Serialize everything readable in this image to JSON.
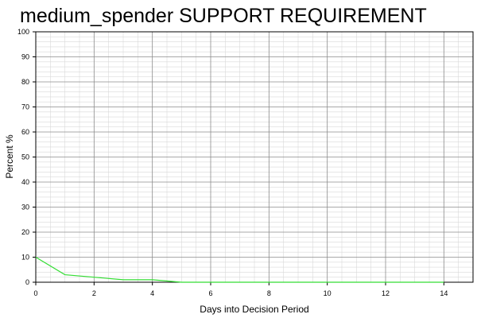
{
  "chart_data": {
    "type": "line",
    "title": "medium_spender SUPPORT REQUIREMENT",
    "xlabel": "Days into Decision Period",
    "ylabel": "Percent %",
    "xlim": [
      0,
      15
    ],
    "ylim": [
      0,
      100
    ],
    "x_ticks": [
      0,
      2,
      4,
      6,
      8,
      10,
      12,
      14
    ],
    "y_ticks": [
      0,
      10,
      20,
      30,
      40,
      50,
      60,
      70,
      80,
      90,
      100
    ],
    "grid": true,
    "legend": "none",
    "series": [
      {
        "color": "#33dd33",
        "x": [
          0,
          1,
          2,
          3,
          4,
          5,
          6,
          7,
          8,
          9,
          10,
          11,
          12,
          13,
          14
        ],
        "y": [
          10,
          3,
          2,
          1,
          1,
          0,
          0,
          0,
          0,
          0,
          0,
          0,
          0,
          0,
          0
        ]
      }
    ]
  }
}
